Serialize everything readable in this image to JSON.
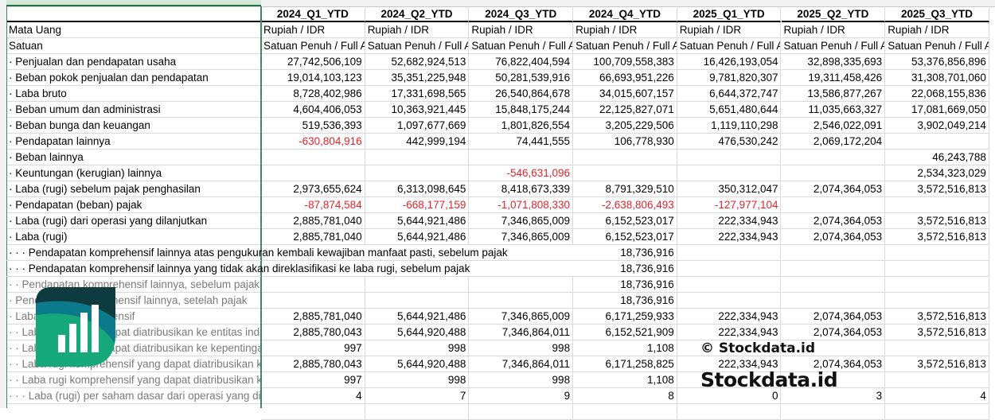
{
  "columns": [
    "2024_Q1_YTD",
    "2024_Q2_YTD",
    "2024_Q3_YTD",
    "2024_Q4_YTD",
    "2025_Q1_YTD",
    "2025_Q2_YTD",
    "2025_Q3_YTD"
  ],
  "currency_label": "Mata Uang",
  "currency_value": "Rupiah / IDR",
  "unit_label": "Satuan",
  "unit_value": "Satuan Penuh / Full Amount",
  "rows": [
    {
      "label": "· Penjualan dan pendapatan usaha",
      "values": [
        "27,742,506,109",
        "52,682,924,513",
        "76,822,404,594",
        "100,709,558,383",
        "16,426,193,054",
        "32,898,335,693",
        "53,376,856,896"
      ]
    },
    {
      "label": "· Beban pokok penjualan dan pendapatan",
      "values": [
        "19,014,103,123",
        "35,351,225,948",
        "50,281,539,916",
        "66,693,951,226",
        "9,781,820,307",
        "19,311,458,426",
        "31,308,701,060"
      ]
    },
    {
      "label": "· Laba bruto",
      "values": [
        "8,728,402,986",
        "17,331,698,565",
        "26,540,864,678",
        "34,015,607,157",
        "6,644,372,747",
        "13,586,877,267",
        "22,068,155,836"
      ]
    },
    {
      "label": "· Beban umum dan administrasi",
      "values": [
        "4,604,406,053",
        "10,363,921,445",
        "15,848,175,244",
        "22,125,827,071",
        "5,651,480,644",
        "11,035,663,327",
        "17,081,669,050"
      ]
    },
    {
      "label": "· Beban bunga dan keuangan",
      "values": [
        "519,536,393",
        "1,097,677,669",
        "1,801,826,554",
        "3,205,229,506",
        "1,119,110,298",
        "2,546,022,091",
        "3,902,049,214"
      ]
    },
    {
      "label": "· Pendapatan lainnya",
      "values": [
        "-630,804,916",
        "442,999,194",
        "74,441,555",
        "106,778,930",
        "476,530,242",
        "2,069,172,204",
        ""
      ]
    },
    {
      "label": "· Beban lainnya",
      "values": [
        "",
        "",
        "",
        "",
        "",
        "",
        "46,243,788"
      ]
    },
    {
      "label": "· Keuntungan (kerugian) lainnya",
      "values": [
        "",
        "",
        "-546,631,096",
        "",
        "",
        "",
        "2,534,323,029"
      ]
    },
    {
      "label": "· Laba (rugi) sebelum pajak penghasilan",
      "values": [
        "2,973,655,624",
        "6,313,098,645",
        "8,418,673,339",
        "8,791,329,510",
        "350,312,047",
        "2,074,364,053",
        "3,572,516,813"
      ]
    },
    {
      "label": "· Pendapatan (beban) pajak",
      "values": [
        "-87,874,584",
        "-668,177,159",
        "-1,071,808,330",
        "-2,638,806,493",
        "-127,977,104",
        "",
        ""
      ]
    },
    {
      "label": "· Laba (rugi) dari operasi yang dilanjutkan",
      "values": [
        "2,885,781,040",
        "5,644,921,486",
        "7,346,865,009",
        "6,152,523,017",
        "222,334,943",
        "2,074,364,053",
        "3,572,516,813"
      ]
    },
    {
      "label": "· Laba (rugi)",
      "values": [
        "2,885,781,040",
        "5,644,921,486",
        "7,346,865,009",
        "6,152,523,017",
        "222,334,943",
        "2,074,364,053",
        "3,572,516,813"
      ]
    },
    {
      "label": "· · · Pendapatan komprehensif lainnya atas pengukuran kembali kewajiban manfaat pasti, sebelum pajak",
      "values": [
        "",
        "",
        "",
        "18,736,916",
        "",
        "",
        ""
      ],
      "overflow": true
    },
    {
      "label": "· · · Pendapatan komprehensif lainnya yang tidak akan direklasifikasi ke laba rugi, sebelum pajak",
      "values": [
        "",
        "",
        "",
        "18,736,916",
        "",
        "",
        ""
      ],
      "overflow": true
    },
    {
      "label": "· · Pendapatan komprehensif lainnya, sebelum pajak",
      "values": [
        "",
        "",
        "",
        "18,736,916",
        "",
        "",
        ""
      ],
      "grey": true
    },
    {
      "label": "· Pendapatan komprehensif lainnya, setelah pajak",
      "values": [
        "",
        "",
        "",
        "18,736,916",
        "",
        "",
        ""
      ],
      "grey": true
    },
    {
      "label": "· Laba (rugi) komprehensif",
      "values": [
        "2,885,781,040",
        "5,644,921,486",
        "7,346,865,009",
        "6,171,259,933",
        "222,334,943",
        "2,074,364,053",
        "3,572,516,813"
      ],
      "grey": true
    },
    {
      "label": "· · Laba (rugi) yang dapat diatribusikan ke entitas induk",
      "values": [
        "2,885,780,043",
        "5,644,920,488",
        "7,346,864,011",
        "6,152,521,909",
        "222,334,943",
        "2,074,364,053",
        "3,572,516,813"
      ],
      "grey": true
    },
    {
      "label": "· · Laba (rugi) yang dapat diatribusikan ke kepentingan non-pengendali",
      "values": [
        "997",
        "998",
        "998",
        "1,108",
        "",
        "",
        ""
      ],
      "grey": true
    },
    {
      "label": "· · Laba rugi komprehensif yang dapat diatribusikan ke entitas induk",
      "values": [
        "2,885,780,043",
        "5,644,920,488",
        "7,346,864,011",
        "6,171,258,825",
        "222,334,943",
        "2,074,364,053",
        "3,572,516,813"
      ],
      "grey": true
    },
    {
      "label": "· · Laba rugi komprehensif yang dapat diatribusikan ke kepentingan non-pengendali",
      "values": [
        "997",
        "998",
        "998",
        "1,108",
        "",
        "",
        ""
      ],
      "grey": true
    },
    {
      "label": "· · · Laba (rugi) per saham dasar dari operasi yang dilanjutkan",
      "values": [
        "4",
        "7",
        "9",
        "8",
        "0",
        "3",
        "4"
      ],
      "grey": true
    }
  ],
  "watermark": {
    "logo_text": "Stockdata.id",
    "copyright": "© Stockdata.id"
  },
  "colors": {
    "negative": "#e0262a",
    "brand_dark": "#0d3b3f",
    "brand_mid": "#0b7a8a",
    "brand_green": "#15a97a"
  }
}
